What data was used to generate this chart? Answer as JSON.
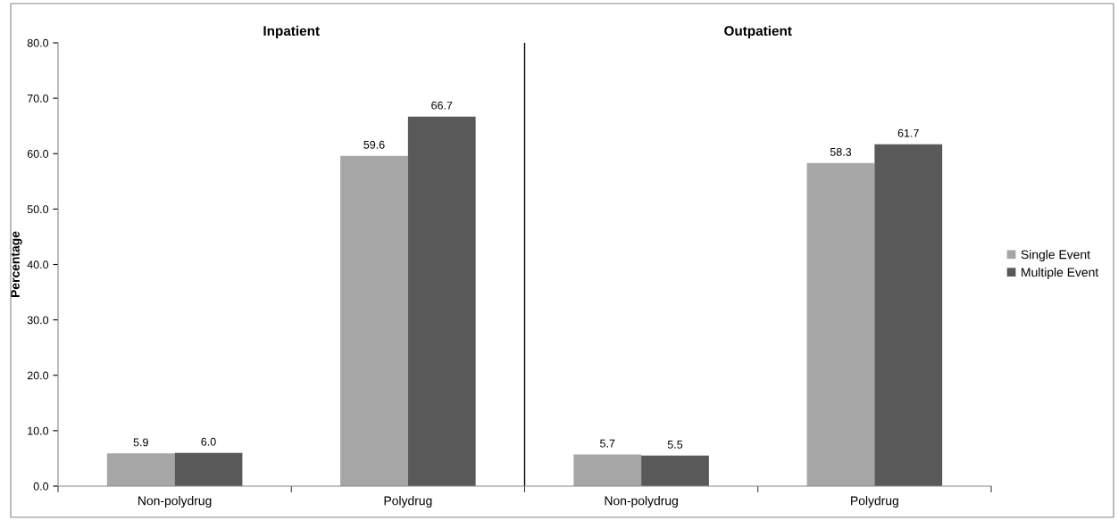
{
  "chart_data": {
    "type": "bar",
    "ylabel": "Percentage",
    "annotations": [
      "Inpatient",
      "Outpatient"
    ],
    "categories": [
      "Non-polydrug",
      "Polydrug",
      "Non-polydrug",
      "Polydrug"
    ],
    "series": [
      {
        "name": "Single Event",
        "color": "#a6a6a6",
        "values": [
          5.9,
          59.6,
          5.7,
          58.3
        ],
        "value_labels": [
          "5.9",
          "59.6",
          "5.7",
          "58.3"
        ]
      },
      {
        "name": "Multiple Event",
        "color": "#595959",
        "values": [
          6.0,
          66.7,
          5.5,
          61.7
        ],
        "value_labels": [
          "6.0",
          "66.7",
          "5.5",
          "61.7"
        ]
      }
    ],
    "ylim": [
      0,
      80
    ],
    "yticks": [
      {
        "value": 0,
        "label": "0.0"
      },
      {
        "value": 10,
        "label": "10.0"
      },
      {
        "value": 20,
        "label": "20.0"
      },
      {
        "value": 30,
        "label": "30.0"
      },
      {
        "value": 40,
        "label": "40.0"
      },
      {
        "value": 50,
        "label": "50.0"
      },
      {
        "value": 60,
        "label": "60.0"
      },
      {
        "value": 70,
        "label": "70.0"
      },
      {
        "value": 80,
        "label": "80.0"
      }
    ],
    "legend": "right",
    "grid": false
  }
}
